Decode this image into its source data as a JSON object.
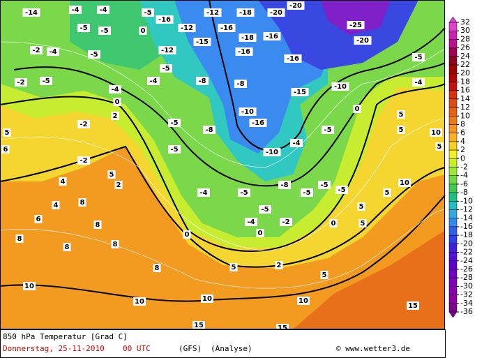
{
  "map": {
    "title": "850 hPa Temperatur [Grad C]",
    "date": "Donnerstag, 25-11-2010",
    "time": "00 UTC",
    "model": "(GFS)",
    "run": "(Analyse)",
    "credit": "© www.wetter3.de",
    "colorbar": {
      "ticks": [
        32,
        30,
        28,
        26,
        24,
        22,
        20,
        18,
        16,
        14,
        12,
        10,
        8,
        6,
        4,
        2,
        0,
        -2,
        -4,
        -6,
        -8,
        -10,
        -12,
        -14,
        -16,
        -18,
        -20,
        -22,
        -24,
        -26,
        -28,
        -30,
        -32,
        -34,
        -36
      ],
      "colors": [
        "#e040d0",
        "#d020b0",
        "#c01090",
        "#a00050",
        "#900020",
        "#a00000",
        "#b00000",
        "#c81010",
        "#d83010",
        "#e04a10",
        "#e86010",
        "#f07818",
        "#f89020",
        "#f8b020",
        "#f8d020",
        "#f0f020",
        "#c8f020",
        "#a0e830",
        "#70d840",
        "#40c850",
        "#20c080",
        "#20c0c0",
        "#30a8e0",
        "#3088f0",
        "#3060f0",
        "#3040e8",
        "#4020e0",
        "#5010d8",
        "#6000d0",
        "#7000c8",
        "#8000c0",
        "#8800b0",
        "#9000a0",
        "#800090"
      ]
    },
    "contour_labels": [
      -14,
      -4,
      -4,
      -5,
      -16,
      -12,
      -18,
      -20,
      -20,
      -25,
      -20,
      -5,
      -5,
      0,
      -12,
      -16,
      -18,
      -16,
      -12,
      -15,
      -16,
      -16,
      -2,
      -4,
      -5,
      -5,
      -2,
      -5,
      -4,
      0,
      -4,
      -8,
      -8,
      -15,
      -10,
      -5,
      -4,
      5,
      6,
      -2,
      2,
      -5,
      -8,
      -10,
      -16,
      -5,
      0,
      5,
      5,
      10,
      5,
      -5,
      -10,
      -4,
      -2,
      5,
      2,
      4,
      4,
      8,
      -4,
      -5,
      -8,
      -5,
      -5,
      -5,
      5,
      10,
      -5,
      -4,
      -2,
      0,
      0,
      5,
      5,
      0,
      6,
      8,
      8,
      8,
      8,
      8,
      5,
      2,
      5,
      10,
      10,
      10,
      10,
      15,
      15,
      15
    ]
  }
}
